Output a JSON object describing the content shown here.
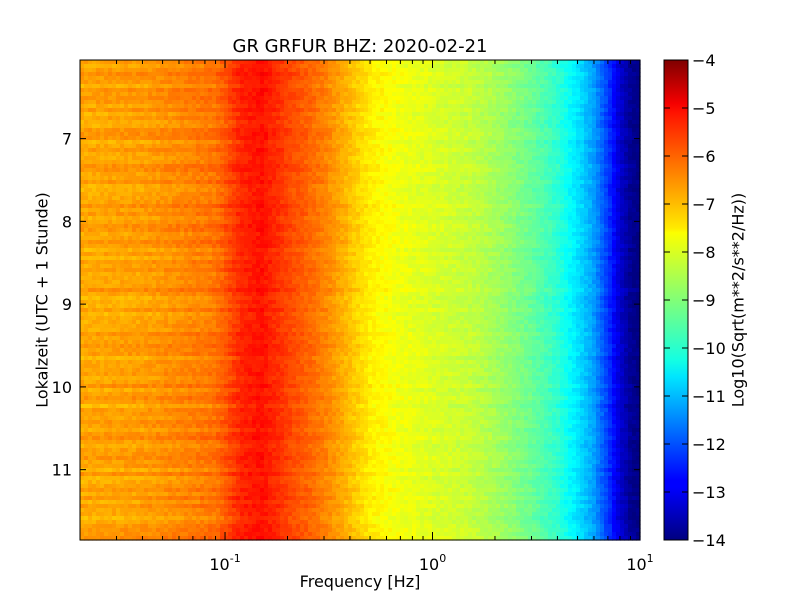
{
  "chart_data": {
    "type": "heatmap",
    "title": "GR GRFUR BHZ: 2020-02-21",
    "xlabel": "Frequency [Hz]",
    "ylabel": "Lokalzeit (UTC + 1 Stunde)",
    "x_scale": "log",
    "xlim": [
      0.02,
      10
    ],
    "x_ticks": [
      {
        "value": 0.1,
        "base": "10",
        "exp": "-1"
      },
      {
        "value": 1,
        "base": "10",
        "exp": "0"
      },
      {
        "value": 10,
        "base": "10",
        "exp": "1"
      }
    ],
    "ylim": [
      6.05,
      11.85
    ],
    "y_inverted": true,
    "y_ticks": [
      7,
      8,
      9,
      10,
      11
    ],
    "y_tick_labels": [
      "7",
      "8",
      "9",
      "10",
      "11"
    ],
    "colorbar": {
      "label": "Log10(Sqrt(m**2/s**2/Hz))",
      "range": [
        -14,
        -4
      ],
      "ticks": [
        -4,
        -5,
        -6,
        -7,
        -8,
        -9,
        -10,
        -11,
        -12,
        -13,
        -14
      ],
      "tick_labels": [
        "−4",
        "−5",
        "−6",
        "−7",
        "−8",
        "−9",
        "−10",
        "−11",
        "−12",
        "−13",
        "−14"
      ],
      "colormap": "jet"
    },
    "spectrum_profile": {
      "frequency_hz": [
        0.02,
        0.04,
        0.06,
        0.09,
        0.12,
        0.15,
        0.2,
        0.3,
        0.5,
        0.7,
        1,
        1.5,
        2,
        3,
        4,
        5,
        6,
        7,
        8,
        9,
        10
      ],
      "log10_amplitude": [
        -6.9,
        -6.8,
        -6.6,
        -6.4,
        -5.6,
        -5.4,
        -5.9,
        -6.5,
        -7.6,
        -7.9,
        -8.1,
        -8.3,
        -8.6,
        -9.2,
        -9.8,
        -10.5,
        -11.2,
        -12.2,
        -13.2,
        -13.8,
        -14.0
      ]
    },
    "grid": false
  }
}
